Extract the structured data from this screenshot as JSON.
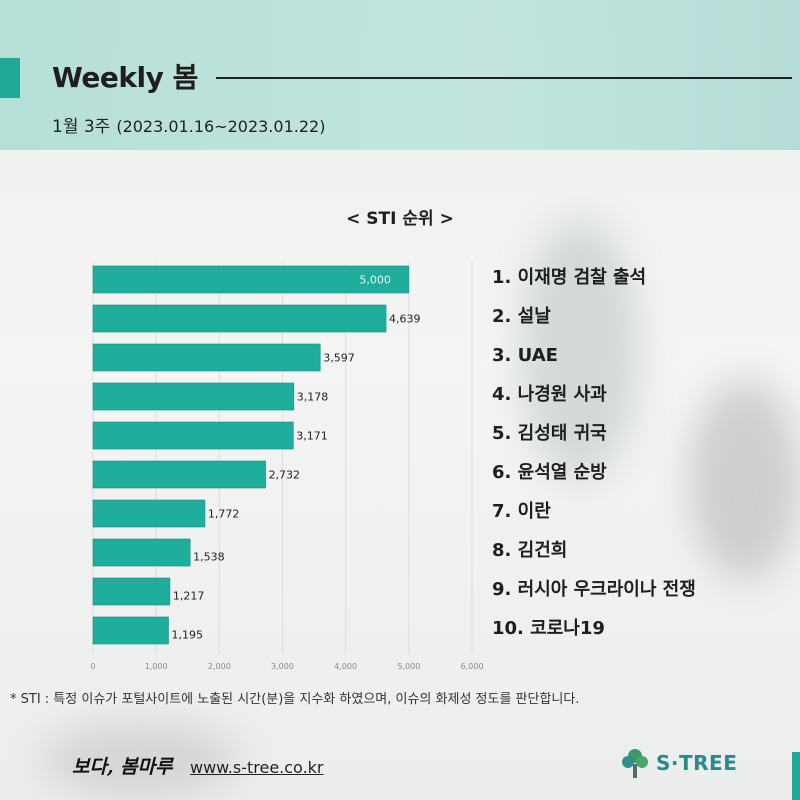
{
  "header": {
    "title": "Weekly 봄",
    "week": "1월 3주",
    "date_range": "(2023.01.16~2023.01.22)"
  },
  "chart_data": {
    "type": "bar",
    "orientation": "horizontal",
    "title": "< STI 순위 >",
    "categories": [
      "1. 이재명 검찰 출석",
      "2. 설날",
      "3. UAE",
      "4. 나경원 사과",
      "5. 김성태 귀국",
      "6. 윤석열 순방",
      "7. 이란",
      "8. 김건희",
      "9. 러시아 우크라이나 전쟁",
      "10. 코로나19"
    ],
    "values": [
      5000,
      4639,
      3597,
      3178,
      3171,
      2732,
      1772,
      1538,
      1217,
      1195
    ],
    "value_labels": [
      "5,000",
      "4,639",
      "3,597",
      "3,178",
      "3,171",
      "2,732",
      "1,772",
      "1,538",
      "1,217",
      "1,195"
    ],
    "xlim": [
      0,
      6000
    ],
    "x_ticks": [
      0,
      1000,
      2000,
      3000,
      4000,
      5000,
      6000
    ],
    "x_tick_labels": [
      "0",
      "1,000",
      "2,000",
      "3,000",
      "4,000",
      "5,000",
      "6,000"
    ],
    "bar_color": "#1fae9b",
    "grid": true,
    "legend": "right"
  },
  "footnote": "* STI : 특정 이슈가 포털사이트에 노출된 시간(분)을 지수화 하였으며, 이슈의 화제성 정도를 판단합니다.",
  "footer": {
    "logo_text": "보다, 봄마루",
    "url": "www.s-tree.co.kr",
    "brand": "S·TREE"
  },
  "colors": {
    "accent": "#1fa896",
    "header_bg": "#b8e0da",
    "brand": "#2a8a8a"
  }
}
